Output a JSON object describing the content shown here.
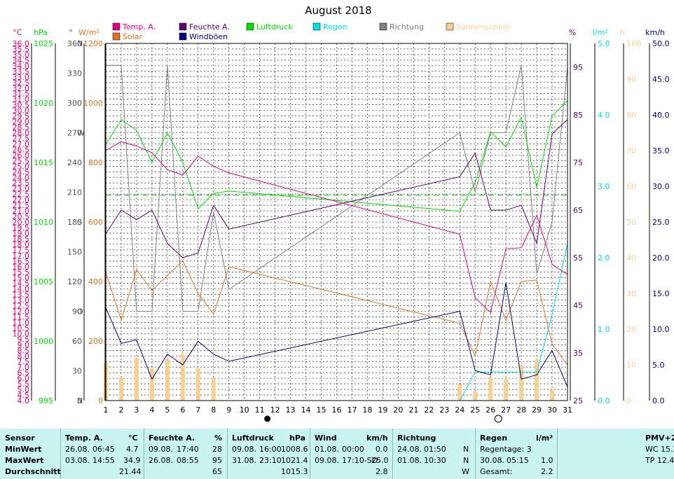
{
  "colors": {
    "temp": "#e0007f",
    "feuchte": "#600070",
    "luftdruck": "#00e000",
    "regen": "#00e0e0",
    "richtung": "#808080",
    "sonnenschein": "#f8d090",
    "solar": "#e07020",
    "windboen": "#000080",
    "grid": "#000000",
    "stats_bg": "#c9f4f2"
  },
  "chart_data": {
    "type": "line",
    "title": "August 2018",
    "x": [
      1,
      2,
      3,
      4,
      5,
      6,
      7,
      8,
      9,
      24,
      25,
      26,
      27,
      28,
      29,
      30,
      31
    ],
    "xlim": [
      1,
      31
    ],
    "x_ticks": [
      "1",
      "2",
      "3",
      "4",
      "5",
      "6",
      "7",
      "8",
      "9",
      "10",
      "11",
      "12",
      "13",
      "14",
      "15",
      "16",
      "17",
      "18",
      "19",
      "20",
      "21",
      "22",
      "23",
      "24",
      "25",
      "26",
      "27",
      "28",
      "29",
      "30",
      "31"
    ],
    "legend": [
      {
        "key": "temp",
        "label": "Temp. A."
      },
      {
        "key": "solar",
        "label": "Solar"
      },
      {
        "key": "feuchte",
        "label": "Feuchte A."
      },
      {
        "key": "windboen",
        "label": "Windböen"
      },
      {
        "key": "luftdruck",
        "label": "Luftdruck"
      },
      {
        "key": "regen",
        "label": "Regen"
      },
      {
        "key": "richtung",
        "label": "Richtung"
      },
      {
        "key": "sonnenschein",
        "label": "Sonnenschein"
      }
    ],
    "axes": {
      "temp": {
        "unit": "°C",
        "min": 4.0,
        "max": 36.0,
        "ticks": [
          "4.0",
          "4.5",
          "5.0",
          "5.5",
          "6.0",
          "6.5",
          "7.0",
          "7.5",
          "8.0",
          "8.5",
          "9.0",
          "9.5",
          "10.0",
          "10.5",
          "11.0",
          "11.5",
          "12.0",
          "12.5",
          "13.0",
          "13.5",
          "14.0",
          "14.5",
          "15.0",
          "15.5",
          "16.0",
          "16.5",
          "17.0",
          "17.5",
          "18.0",
          "18.5",
          "19.0",
          "19.5",
          "20.0",
          "20.5",
          "21.0",
          "21.5",
          "22.0",
          "22.5",
          "23.0",
          "23.5",
          "24.0",
          "24.5",
          "25.0",
          "25.5",
          "26.0",
          "26.5",
          "27.0",
          "27.5",
          "28.0",
          "28.5",
          "29.0",
          "29.5",
          "30.0",
          "30.5",
          "31.0",
          "31.5",
          "32.0",
          "32.5",
          "33.0",
          "33.5",
          "34.0",
          "34.5",
          "35.0",
          "35.5",
          "36.0"
        ]
      },
      "luftdruck": {
        "unit": "hPa",
        "min": 995,
        "max": 1025,
        "ticks": [
          "995",
          "1000",
          "1005",
          "1010",
          "1015",
          "1020",
          "1025"
        ]
      },
      "richtung": {
        "unit": "°",
        "min": 0,
        "max": 360,
        "ticks": [
          "0",
          "30",
          "60",
          "90",
          "120",
          "150",
          "180",
          "210",
          "240",
          "270",
          "300",
          "330",
          "360"
        ],
        "compass": {
          "0": "N",
          "90": "O",
          "180": "S",
          "270": "W",
          "360": "N"
        }
      },
      "solar": {
        "unit": "W/m²",
        "min": 0,
        "max": 1200,
        "ticks": [
          "0",
          "200",
          "400",
          "600",
          "800",
          "1000",
          "1200"
        ]
      },
      "feuchte": {
        "unit": "%",
        "min": 25,
        "max": 100,
        "ticks": [
          "25",
          "35",
          "45",
          "55",
          "65",
          "75",
          "85",
          "95"
        ]
      },
      "regen": {
        "unit": "l/m²",
        "min": 0.0,
        "max": 5.0,
        "ticks": [
          "0.0",
          "1.0",
          "2.0",
          "3.0",
          "4.0",
          "5.0"
        ]
      },
      "sonnenschein": {
        "unit": "h",
        "min": 0,
        "max": 100,
        "ticks": [
          "0",
          "10",
          "20",
          "30",
          "40",
          "50",
          "60",
          "70",
          "80",
          "90",
          "100"
        ]
      },
      "wind": {
        "unit": "km/h",
        "min": 0.0,
        "max": 50.0,
        "ticks": [
          "0.0",
          "5.0",
          "10.0",
          "15.0",
          "20.0",
          "25.0",
          "30.0",
          "35.0",
          "40.0",
          "45.0",
          "50.0"
        ]
      }
    },
    "series": [
      {
        "key": "temp",
        "axis": "temp",
        "name": "Temp. A.",
        "values": [
          26.4,
          27.2,
          26.8,
          26.2,
          24.7,
          24.2,
          25.9,
          25.0,
          24.4,
          18.9,
          13.2,
          11.9,
          17.6,
          17.7,
          20.6,
          16.2,
          15.3
        ]
      },
      {
        "key": "feuchte",
        "axis": "feuchte",
        "name": "Feuchte A.",
        "values": [
          60,
          65,
          63,
          65,
          58,
          55,
          56,
          66,
          61,
          72,
          77,
          65,
          65,
          66,
          58,
          81,
          84
        ]
      },
      {
        "key": "luftdruck",
        "axis": "luftdruck",
        "name": "Luftdruck",
        "values": [
          1016.5,
          1018.6,
          1017.7,
          1015.0,
          1017.5,
          1015.0,
          1011.1,
          1012.4,
          1012.6,
          1010.9,
          1013.3,
          1017.6,
          1016.3,
          1018.8,
          1012.9,
          1018.9,
          1020.2
        ]
      },
      {
        "key": "solar",
        "axis": "solar",
        "name": "Solar",
        "values": [
          430,
          270,
          440,
          370,
          420,
          470,
          360,
          290,
          450,
          260,
          150,
          400,
          270,
          400,
          405,
          190,
          120
        ]
      },
      {
        "key": "windboen",
        "axis": "wind",
        "name": "Windböen",
        "values": [
          13.0,
          8.0,
          8.5,
          3.0,
          6.5,
          5.0,
          8.3,
          6.5,
          5.5,
          12.5,
          4.2,
          3.6,
          16.5,
          3.0,
          3.6,
          7.0,
          1.9
        ]
      },
      {
        "key": "richtung",
        "axis": "richtung",
        "name": "Richtung",
        "values": [
          338,
          338,
          90,
          90,
          338,
          90,
          90,
          190,
          112,
          270,
          210,
          270,
          270,
          338,
          128,
          180,
          336
        ]
      },
      {
        "key": "regen",
        "axis": "regen",
        "name": "Regen",
        "x": [
          24,
          25,
          26,
          27,
          28,
          29,
          30,
          31
        ],
        "values": [
          0.0,
          0.4,
          0.4,
          0.4,
          0.4,
          0.4,
          1.2,
          2.2
        ]
      }
    ],
    "sonnenschein_bars": {
      "x": [
        1,
        2,
        3,
        4,
        5,
        6,
        7,
        8,
        24,
        25,
        26,
        27,
        28,
        29,
        30
      ],
      "values": [
        10.5,
        6.5,
        12.0,
        9.0,
        11.5,
        13.0,
        9.0,
        6.5,
        4.5,
        2.5,
        6.5,
        6.0,
        10.0,
        11.5,
        3.0
      ]
    },
    "reference_lines": [
      {
        "axis": "temp",
        "value": 22.4,
        "style": "dashed",
        "color": "#00c000"
      }
    ],
    "moon_phases": [
      {
        "day": 11.5,
        "phase": "new"
      },
      {
        "day": 26.5,
        "phase": "full"
      }
    ]
  },
  "stats": {
    "sensor": {
      "header": "Sensor",
      "rows": [
        "MinWert",
        "MaxWert",
        "Durchschnitt"
      ]
    },
    "temp": {
      "header": "Temp. A.",
      "unit": "°C",
      "min_date": "26.08.",
      "min_time": "06:45",
      "min_value": "4.7",
      "max_date": "03.08.",
      "max_time": "14:55",
      "max_value": "34.9",
      "avg": "21.44"
    },
    "feuchte": {
      "header": "Feuchte A.",
      "unit": "%",
      "min_date": "09.08.",
      "min_time": "17:40",
      "min_value": "28",
      "max_date": "26.08.",
      "max_time": "08:55",
      "max_value": "95",
      "avg": "65"
    },
    "luftdruck": {
      "header": "Luftdruck",
      "unit": "hPa",
      "min_date": "09.08.",
      "min_time": "16:00",
      "min_value": "1008.6",
      "max_date": "31.08.",
      "max_time": "23:10",
      "max_value": "1021.4",
      "avg": "1015.3"
    },
    "wind": {
      "header": "Wind",
      "unit": "km/h",
      "min_date": "01.08.",
      "min_time": "00:00",
      "min_value": "0.0",
      "max_date": "09.08.",
      "max_time": "17:10-SO",
      "max_value": "25.0",
      "avg": "2.8"
    },
    "richtung": {
      "header": "Richtung",
      "min_date": "24.08.",
      "min_time": "01:50",
      "min_value": "N",
      "max_date": "01.08.",
      "max_time": "10:30",
      "max_value": "N",
      "avg": "W"
    },
    "regen": {
      "header": "Regen",
      "unit": "l/m²",
      "regentage": "Regentage: 3",
      "max_date": "30.08.",
      "max_time": "05:15",
      "max_value": "1.0",
      "gesamt_label": "Gesamt:",
      "gesamt_value": "2.2"
    },
    "pmv": {
      "header": "PMV+2:",
      "wc": "WC 15.2",
      "tp": "TP 12.4"
    }
  }
}
